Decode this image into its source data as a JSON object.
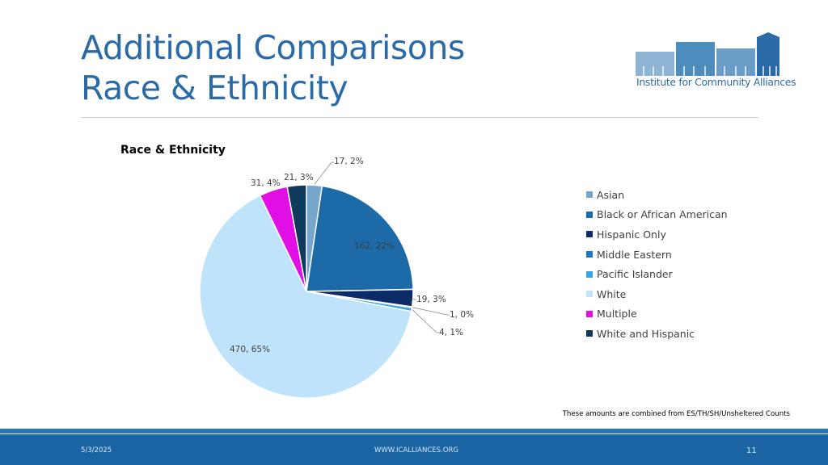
{
  "slide": {
    "title_line1": "Additional Comparisons",
    "title_line2": "Race & Ethnicity",
    "logo_text": "Institute for Community Alliances",
    "footnote": "These amounts are combined from ES/TH/SH/Unsheltered Counts",
    "footer": {
      "date": "5/3/2025",
      "url": "WWW.ICALLIANCES.ORG",
      "page": "11"
    }
  },
  "colors": {
    "title": "#2a6aa6",
    "footer": "#1a64a4",
    "logo_light": "#8db4d2",
    "logo_mid": "#4d8dbd",
    "logo_dark": "#2a6aa6"
  },
  "chart_data": {
    "type": "pie",
    "title": "Race & Ethnicity",
    "legend_position": "right",
    "slices": [
      {
        "name": "Asian",
        "value": 17,
        "label": "17, 2%",
        "color": "#76a6cc"
      },
      {
        "name": "Black or African American",
        "value": 162,
        "label": "162, 22%",
        "color": "#1c6aa8"
      },
      {
        "name": "Hispanic Only",
        "value": 19,
        "label": "19, 3%",
        "color": "#0d2b66"
      },
      {
        "name": "Middle Eastern",
        "value": 1,
        "label": "1, 0%",
        "color": "#1f74c4"
      },
      {
        "name": "Pacific Islander",
        "value": 4,
        "label": "4, 1%",
        "color": "#3aa4e4"
      },
      {
        "name": "White",
        "value": 470,
        "label": "470, 65%",
        "color": "#bfe3fb"
      },
      {
        "name": "Multiple",
        "value": 31,
        "label": "31, 4%",
        "color": "#e20ee6"
      },
      {
        "name": "White and Hispanic",
        "value": 21,
        "label": "21, 3%",
        "color": "#0f3a5c"
      }
    ]
  }
}
